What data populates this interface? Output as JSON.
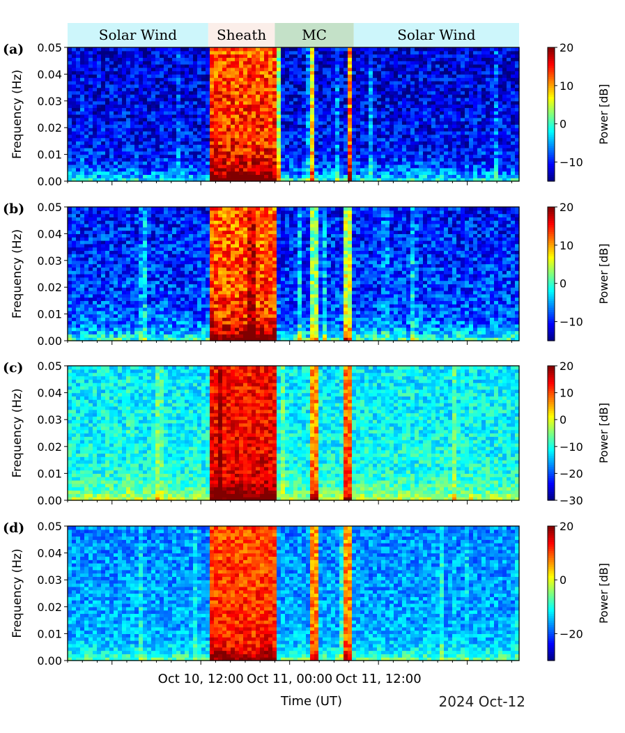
{
  "figure": {
    "date_label": "2024 Oct-12",
    "xlabel": "Time (UT)",
    "x_tick_labels": [
      "Oct 10, 12:00",
      "Oct 11, 00:00",
      "Oct 11, 12:00"
    ],
    "regions": [
      {
        "label": "Solar Wind",
        "start": "2024-10-09 18:00",
        "end": "2024-10-10 13:00",
        "color": "#cdf6fb"
      },
      {
        "label": "Sheath",
        "start": "2024-10-10 13:00",
        "end": "2024-10-10 22:00",
        "color": "#fbeee9"
      },
      {
        "label": "MC",
        "start": "2024-10-10 22:00",
        "end": "2024-10-11 08:40",
        "color": "#c4e1c8"
      },
      {
        "label": "Solar Wind",
        "start": "2024-10-11 08:40",
        "end": "2024-10-12 07:00",
        "color": "#cdf6fb"
      }
    ]
  },
  "chart_data": [
    {
      "panel_label": "(a)",
      "type": "heatmap",
      "ylabel": "Frequency (Hz)",
      "xlim": [
        "2024-10-09 18:00",
        "2024-10-12 07:00"
      ],
      "ylim": [
        0,
        0.05
      ],
      "y_ticks": [
        "0.00",
        "0.01",
        "0.02",
        "0.03",
        "0.04",
        "0.05"
      ],
      "colorbar": {
        "label": "Power [dB]",
        "range": [
          -15,
          20
        ],
        "ticks": [
          -10,
          0,
          10,
          20
        ]
      },
      "colormap": "jet",
      "background_level_db": -10,
      "enhanced_intervals": [
        {
          "start": "2024-10-10 13:00",
          "end": "2024-10-10 22:00",
          "level_db": 15
        },
        {
          "start": "2024-10-10 22:30",
          "end": "2024-10-10 23:00",
          "level_db": 5
        },
        {
          "start": "2024-10-11 03:00",
          "end": "2024-10-11 03:30",
          "level_db": 8
        },
        {
          "start": "2024-10-11 08:00",
          "end": "2024-10-11 08:40",
          "level_db": 12
        }
      ]
    },
    {
      "panel_label": "(b)",
      "type": "heatmap",
      "ylabel": "Frequency (Hz)",
      "xlim": [
        "2024-10-09 18:00",
        "2024-10-12 07:00"
      ],
      "ylim": [
        0,
        0.05
      ],
      "y_ticks": [
        "0.00",
        "0.01",
        "0.02",
        "0.03",
        "0.04",
        "0.05"
      ],
      "colorbar": {
        "label": "Power [dB]",
        "range": [
          -15,
          20
        ],
        "ticks": [
          -10,
          0,
          10,
          20
        ]
      },
      "colormap": "jet",
      "background_level_db": -8,
      "enhanced_intervals": [
        {
          "start": "2024-10-10 13:00",
          "end": "2024-10-10 22:00",
          "level_db": 14
        },
        {
          "start": "2024-10-11 03:00",
          "end": "2024-10-11 04:00",
          "level_db": 4
        },
        {
          "start": "2024-10-11 07:30",
          "end": "2024-10-11 08:40",
          "level_db": 6
        }
      ]
    },
    {
      "panel_label": "(c)",
      "type": "heatmap",
      "ylabel": "Frequency (Hz)",
      "xlim": [
        "2024-10-09 18:00",
        "2024-10-12 07:00"
      ],
      "ylim": [
        0,
        0.05
      ],
      "y_ticks": [
        "0.00",
        "0.01",
        "0.02",
        "0.03",
        "0.04",
        "0.05"
      ],
      "colorbar": {
        "label": "Power [dB]",
        "range": [
          -30,
          20
        ],
        "ticks": [
          -30,
          -20,
          -10,
          0,
          10,
          20
        ]
      },
      "colormap": "jet",
      "background_level_db": -10,
      "enhanced_intervals": [
        {
          "start": "2024-10-10 13:00",
          "end": "2024-10-10 22:00",
          "level_db": 15
        },
        {
          "start": "2024-10-11 03:00",
          "end": "2024-10-11 04:00",
          "level_db": 8
        },
        {
          "start": "2024-10-11 07:00",
          "end": "2024-10-11 08:40",
          "level_db": 10
        }
      ]
    },
    {
      "panel_label": "(d)",
      "type": "heatmap",
      "ylabel": "Frequency (Hz)",
      "xlim": [
        "2024-10-09 18:00",
        "2024-10-12 07:00"
      ],
      "ylim": [
        0,
        0.05
      ],
      "y_ticks": [
        "0.00",
        "0.01",
        "0.02",
        "0.03",
        "0.04",
        "0.05"
      ],
      "colorbar": {
        "label": "Power [dB]",
        "range": [
          -30,
          20
        ],
        "ticks": [
          -20,
          0,
          20
        ]
      },
      "colormap": "jet",
      "background_level_db": -15,
      "enhanced_intervals": [
        {
          "start": "2024-10-10 13:00",
          "end": "2024-10-10 22:00",
          "level_db": 12
        },
        {
          "start": "2024-10-11 03:00",
          "end": "2024-10-11 04:00",
          "level_db": 8
        },
        {
          "start": "2024-10-11 07:00",
          "end": "2024-10-11 08:40",
          "level_db": 8
        }
      ]
    }
  ]
}
